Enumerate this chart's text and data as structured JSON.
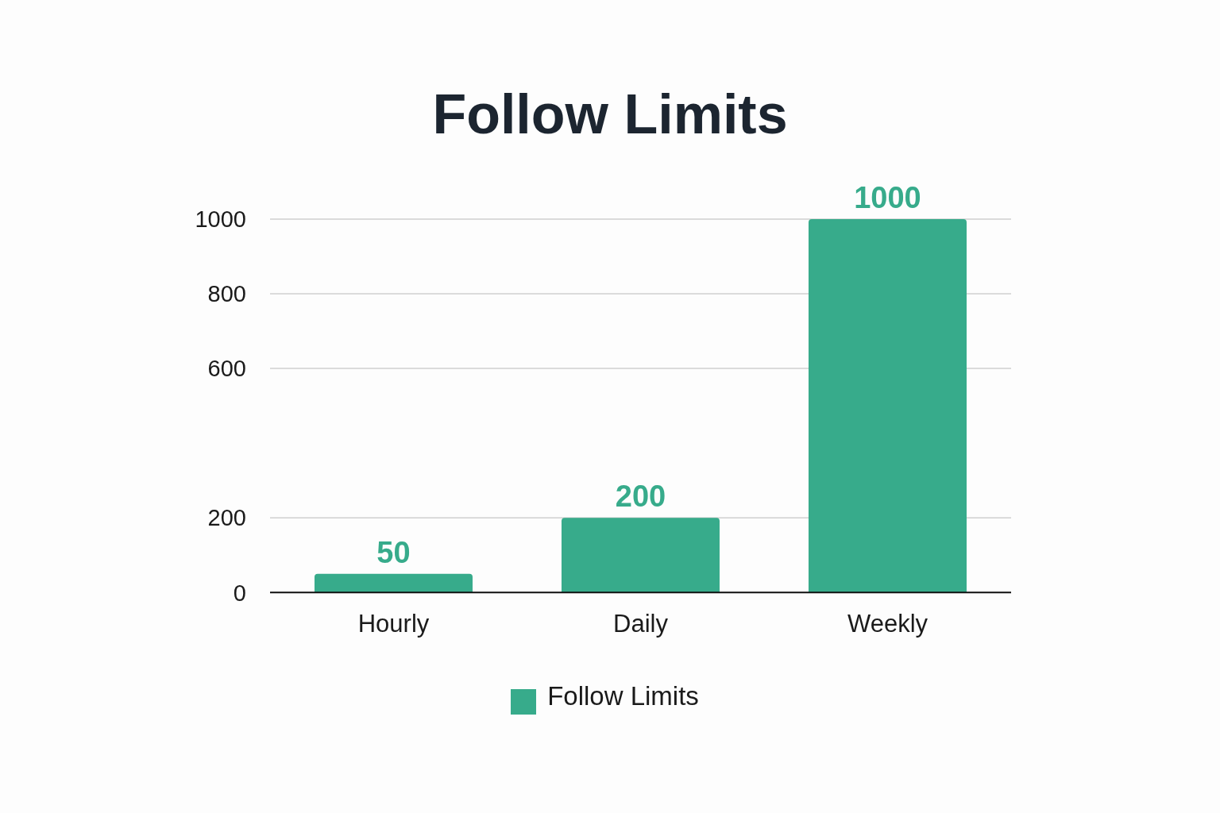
{
  "chart_data": {
    "type": "bar",
    "title": "Follow Limits",
    "categories": [
      "Hourly",
      "Daily",
      "Weekly"
    ],
    "series": [
      {
        "name": "Follow Limits",
        "color": "#37ab8b",
        "values": [
          50,
          200,
          1000
        ]
      }
    ],
    "ylim": [
      0,
      1000
    ],
    "yticks": [
      0,
      200,
      600,
      800,
      1000
    ],
    "grid": "y",
    "legend": "bottom",
    "data_labels": true
  }
}
